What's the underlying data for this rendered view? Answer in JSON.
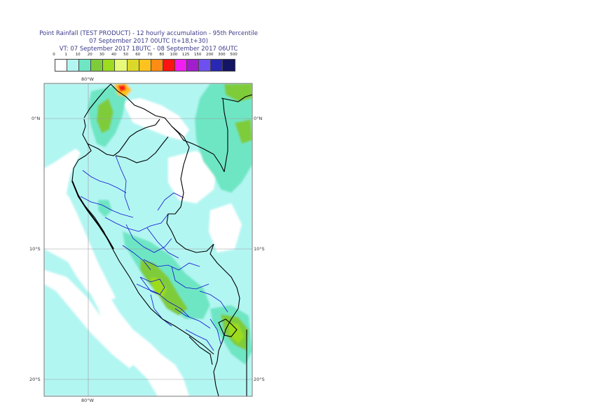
{
  "header": {
    "line1": "Point Rainfall (TEST PRODUCT) - 12 hourly accumulation - 95th Percentile",
    "line2": "07 September 2017 00UTC (t+18,t+30)",
    "line3": "VT: 07 September 2017 18UTC - 08 September 2017 06UTC"
  },
  "legend": {
    "labels": [
      "0",
      "1",
      "10",
      "20",
      "30",
      "40",
      "50",
      "60",
      "70",
      "80",
      "100",
      "125",
      "150",
      "200",
      "300",
      "500"
    ],
    "colors": [
      "#ffffff",
      "#b2f6f2",
      "#6ee6c4",
      "#7fcc3a",
      "#9ddc1e",
      "#e8fa7a",
      "#dcd82a",
      "#ffc21e",
      "#ff8c14",
      "#ff1414",
      "#f01ef0",
      "#a01ecc",
      "#6e50f0",
      "#2828b4",
      "#141464"
    ]
  },
  "axes": {
    "lon_top": "80°W",
    "lon_bottom": "80°W",
    "lat_left": [
      "0°N",
      "10°S",
      "20°S"
    ],
    "lat_right": [
      "0°N",
      "10°S",
      "20°S"
    ]
  }
}
